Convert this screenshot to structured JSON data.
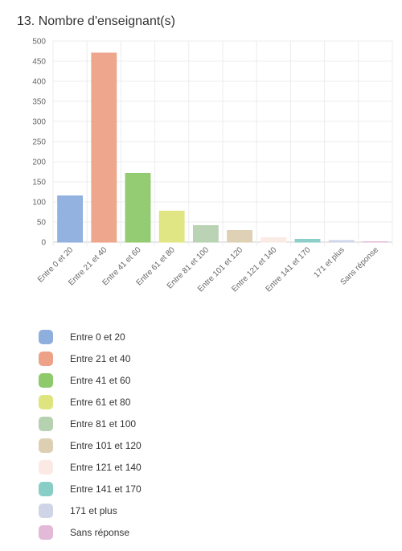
{
  "title": "13. Nombre d'enseignant(s)",
  "chart_data": {
    "type": "bar",
    "categories": [
      "Entre 0 et 20",
      "Entre 21 et 40",
      "Entre 41 et 60",
      "Entre 61 et 80",
      "Entre 81 et 100",
      "Entre 101 et 120",
      "Entre 121 et 140",
      "Entre 141 et 170",
      "171 et plus",
      "Sans réponse"
    ],
    "values": [
      115,
      470,
      171,
      77,
      41,
      29,
      11,
      7,
      4,
      0
    ],
    "colors": [
      "#8eaede",
      "#eda287",
      "#8ec96b",
      "#dfe57e",
      "#b6d1b0",
      "#ddcfb2",
      "#fbeae4",
      "#88cdc6",
      "#cfd5e7",
      "#e2bad8"
    ],
    "yticks": [
      0,
      50,
      100,
      150,
      200,
      250,
      300,
      350,
      400,
      450,
      500
    ],
    "ylim": [
      0,
      500
    ],
    "grid": true,
    "legend_position": "bottom"
  }
}
